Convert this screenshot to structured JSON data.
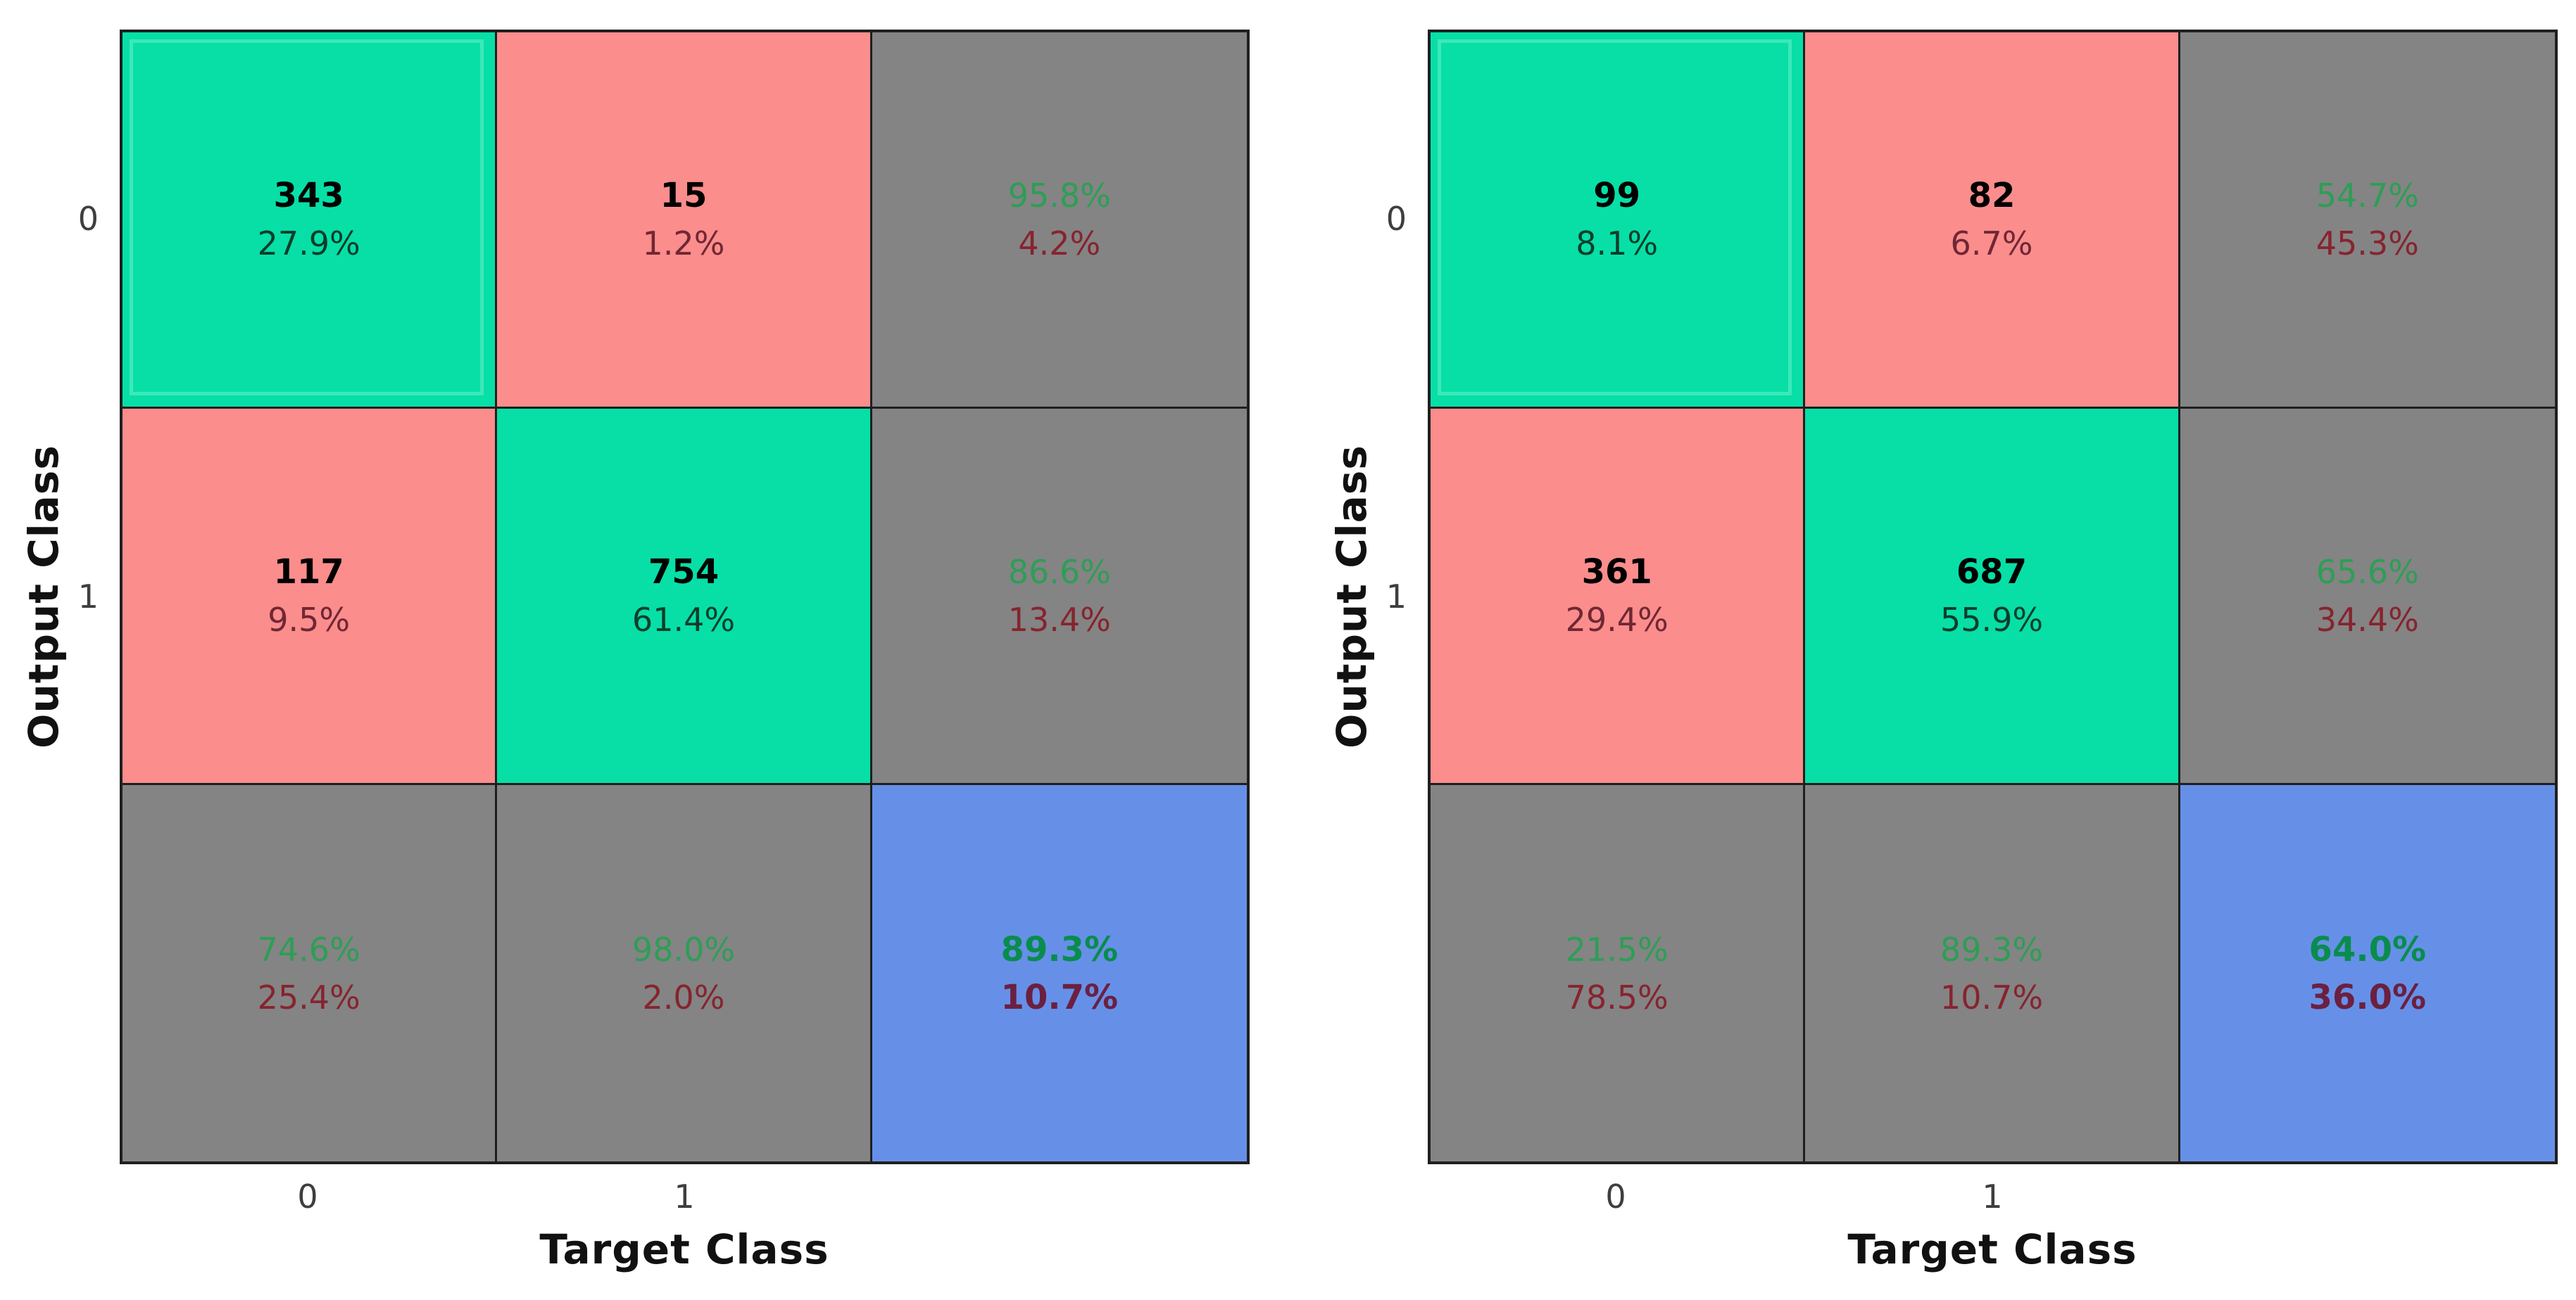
{
  "axes": {
    "x_label": "Target Class",
    "y_label": "Output Class",
    "x_ticks": [
      "0",
      "1"
    ],
    "y_ticks": [
      "0",
      "1"
    ]
  },
  "colors": {
    "green_cell": "#07dfa7",
    "pink_cell": "#fb8d8d",
    "gray_cell": "#848484",
    "blue_cell": "#6690e8",
    "grid_line": "#1f1f1f",
    "count_text": "#000000",
    "pct_on_green": "#0b3d2a",
    "pct_on_pink": "#702734",
    "summary_green": "#2d9e55",
    "summary_red": "#86242f",
    "total_green": "#098c4d",
    "total_red": "#6b2040",
    "tick_text": "#3e3e3e",
    "axis_text": "#111111"
  },
  "matrices": [
    {
      "cells": [
        [
          {
            "line1": "343",
            "line2": "27.9%"
          },
          {
            "line1": "15",
            "line2": "1.2%"
          },
          {
            "line1": "95.8%",
            "line2": "4.2%"
          }
        ],
        [
          {
            "line1": "117",
            "line2": "9.5%"
          },
          {
            "line1": "754",
            "line2": "61.4%"
          },
          {
            "line1": "86.6%",
            "line2": "13.4%"
          }
        ],
        [
          {
            "line1": "74.6%",
            "line2": "25.4%"
          },
          {
            "line1": "98.0%",
            "line2": "2.0%"
          },
          {
            "line1": "89.3%",
            "line2": "10.7%"
          }
        ]
      ]
    },
    {
      "cells": [
        [
          {
            "line1": "99",
            "line2": "8.1%"
          },
          {
            "line1": "82",
            "line2": "6.7%"
          },
          {
            "line1": "54.7%",
            "line2": "45.3%"
          }
        ],
        [
          {
            "line1": "361",
            "line2": "29.4%"
          },
          {
            "line1": "687",
            "line2": "55.9%"
          },
          {
            "line1": "65.6%",
            "line2": "34.4%"
          }
        ],
        [
          {
            "line1": "21.5%",
            "line2": "78.5%"
          },
          {
            "line1": "89.3%",
            "line2": "10.7%"
          },
          {
            "line1": "64.0%",
            "line2": "36.0%"
          }
        ]
      ]
    }
  ],
  "chart_data": [
    {
      "type": "heatmap",
      "title": "Confusion matrix (left)",
      "xlabel": "Target Class",
      "ylabel": "Output Class",
      "x_categories": [
        "0",
        "1"
      ],
      "y_categories": [
        "0",
        "1"
      ],
      "counts": [
        [
          343,
          15
        ],
        [
          117,
          754
        ]
      ],
      "cell_percent_of_total": [
        [
          27.9,
          1.2
        ],
        [
          9.5,
          61.4
        ]
      ],
      "row_summary_pct_correct_incorrect": [
        [
          95.8,
          4.2
        ],
        [
          86.6,
          13.4
        ]
      ],
      "column_summary_pct_correct_incorrect": [
        [
          74.6,
          25.4
        ],
        [
          98.0,
          2.0
        ]
      ],
      "overall_pct_correct_incorrect": [
        89.3,
        10.7
      ],
      "cell_color_classes": [
        [
          "correct-green",
          "incorrect-pink"
        ],
        [
          "incorrect-pink",
          "correct-green"
        ]
      ],
      "legend_position": "none",
      "grid": "on"
    },
    {
      "type": "heatmap",
      "title": "Confusion matrix (right)",
      "xlabel": "Target Class",
      "ylabel": "Output Class",
      "x_categories": [
        "0",
        "1"
      ],
      "y_categories": [
        "0",
        "1"
      ],
      "counts": [
        [
          99,
          82
        ],
        [
          361,
          687
        ]
      ],
      "cell_percent_of_total": [
        [
          8.1,
          6.7
        ],
        [
          29.4,
          55.9
        ]
      ],
      "row_summary_pct_correct_incorrect": [
        [
          54.7,
          45.3
        ],
        [
          65.6,
          34.4
        ]
      ],
      "column_summary_pct_correct_incorrect": [
        [
          21.5,
          78.5
        ],
        [
          89.3,
          10.7
        ]
      ],
      "overall_pct_correct_incorrect": [
        64.0,
        36.0
      ],
      "cell_color_classes": [
        [
          "correct-green",
          "incorrect-pink"
        ],
        [
          "incorrect-pink",
          "correct-green"
        ]
      ],
      "legend_position": "none",
      "grid": "on"
    }
  ]
}
